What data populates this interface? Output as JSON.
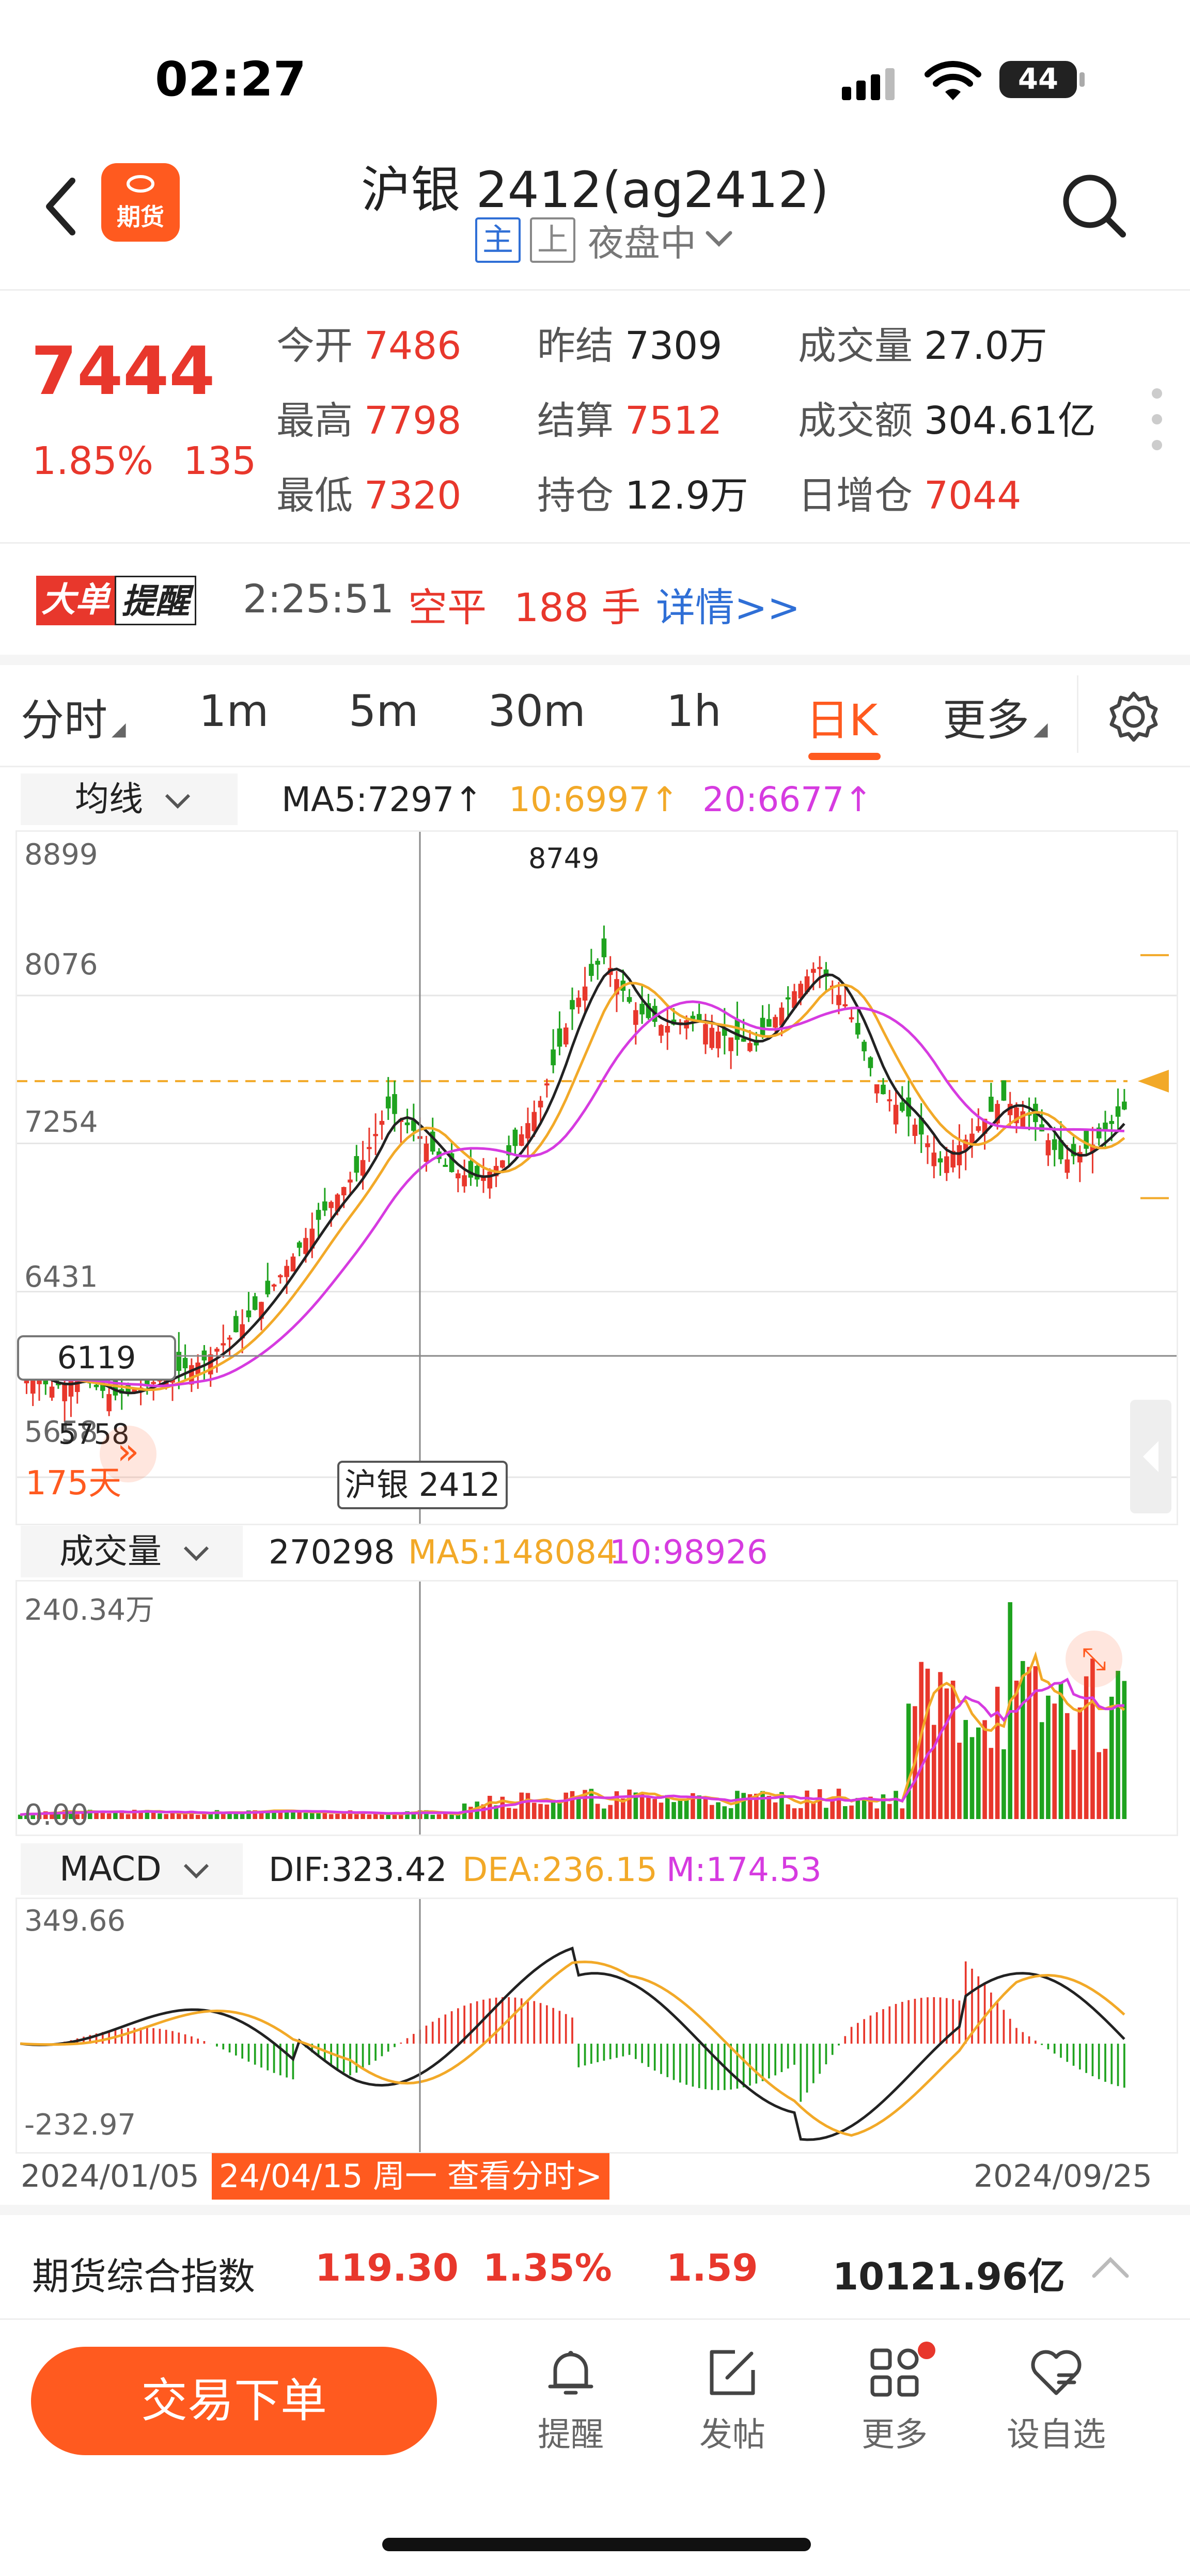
{
  "status_bar": {
    "time": "02:27",
    "battery": "44"
  },
  "header": {
    "logo_text": "期货",
    "title": "沪银 2412(ag2412)",
    "tag_main": "主",
    "tag_sh": "上",
    "session": "夜盘中"
  },
  "quote": {
    "price": "7444",
    "change_pct": "1.85%",
    "change": "135",
    "stats": [
      {
        "label": "今开",
        "value": "7486",
        "color": "red"
      },
      {
        "label": "昨结",
        "value": "7309",
        "color": "dark"
      },
      {
        "label": "成交量",
        "value": "27.0万",
        "color": "dark"
      },
      {
        "label": "最高",
        "value": "7798",
        "color": "red"
      },
      {
        "label": "结算",
        "value": "7512",
        "color": "red"
      },
      {
        "label": "成交额",
        "value": "304.61亿",
        "color": "dark"
      },
      {
        "label": "最低",
        "value": "7320",
        "color": "red"
      },
      {
        "label": "持仓",
        "value": "12.9万",
        "color": "dark"
      },
      {
        "label": "日增仓",
        "value": "7044",
        "color": "red"
      }
    ]
  },
  "alert": {
    "badge_a": "大单",
    "badge_b": "提醒",
    "time": "2:25:51",
    "action": "空平",
    "lots": "188 手",
    "link": "详情>>"
  },
  "tabs": [
    {
      "label": "分时",
      "has_caret": true
    },
    {
      "label": "1m"
    },
    {
      "label": "5m"
    },
    {
      "label": "30m"
    },
    {
      "label": "1h"
    },
    {
      "label": "日K",
      "active": true
    },
    {
      "label": "更多",
      "has_caret": true
    }
  ],
  "ma_bar": {
    "selector": "均线",
    "ma5": "MA5:7297↑",
    "ma10": "10:6997↑",
    "ma20": "20:6677↑"
  },
  "kline": {
    "y_ticks": [
      "8899",
      "8076",
      "7254",
      "6431",
      "5658"
    ],
    "high_label": "8749",
    "low_label": "5758",
    "cross_price": "6119",
    "days": "175天",
    "crosshair_label": "沪银 2412"
  },
  "volume": {
    "selector": "成交量",
    "value": "270298",
    "ma5": "MA5:148084",
    "ma10": "10:98926",
    "y_top": "240.34万",
    "y_bottom": "0.00"
  },
  "macd": {
    "selector": "MACD",
    "dif": "DIF:323.42",
    "dea": "DEA:236.15",
    "m": "M:174.53",
    "y_top": "349.66",
    "y_bottom": "-232.97"
  },
  "x_axis": {
    "start": "2024/01/05",
    "crosshair_date": "24/04/15 周一 查看分时>",
    "end": "2024/09/25"
  },
  "index_bar": {
    "name": "期货综合指数",
    "value": "119.30",
    "pct": "1.35%",
    "change": "1.59",
    "turnover": "10121.96亿"
  },
  "bottom_nav": {
    "trade_button": "交易下单",
    "items": [
      {
        "label": "提醒",
        "icon": "bell-icon"
      },
      {
        "label": "发帖",
        "icon": "edit-icon"
      },
      {
        "label": "更多",
        "icon": "grid-icon"
      },
      {
        "label": "设自选",
        "icon": "heart-icon"
      }
    ]
  },
  "colors": {
    "up": "#e8372c",
    "down": "#1fa31f",
    "ma5": "#222222",
    "ma10": "#f2a928",
    "ma20": "#d63be0",
    "accent": "#ff5a1f"
  },
  "chart_data": {
    "type": "candlestick",
    "period": "daily",
    "x_range": [
      "2024/01/05",
      "2024/09/25"
    ],
    "ylim": [
      5658,
      8899
    ],
    "y_ticks": [
      8899,
      8076,
      7254,
      6431,
      5658
    ],
    "close_path": [
      6000,
      5900,
      5950,
      5850,
      5900,
      5980,
      6050,
      6200,
      6400,
      6650,
      6900,
      7100,
      7450,
      7300,
      7100,
      7050,
      7200,
      7500,
      8000,
      8300,
      8000,
      7900,
      7950,
      7850,
      7800,
      8050,
      8250,
      8000,
      7550,
      7400,
      7150,
      7300,
      7500,
      7400,
      7150,
      7250,
      7444
    ],
    "ma_series": [
      {
        "name": "MA5",
        "last": 7297
      },
      {
        "name": "10",
        "last": 6997
      },
      {
        "name": "20",
        "last": 6677
      }
    ]
  }
}
